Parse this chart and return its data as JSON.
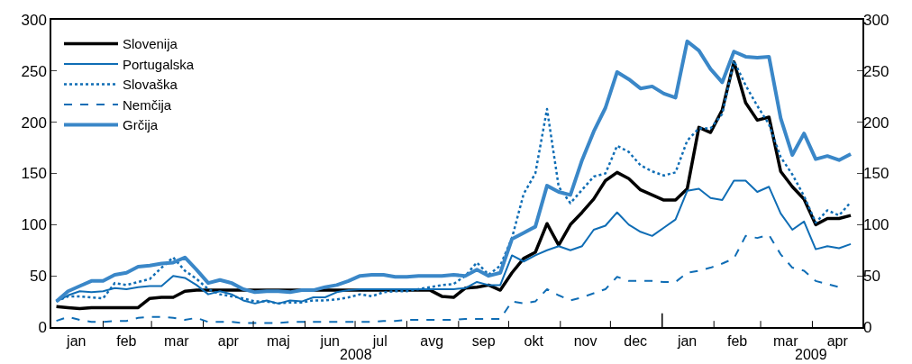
{
  "chart_data": {
    "type": "line",
    "x": [
      "2008-01-04",
      "2008-01-11",
      "2008-01-18",
      "2008-01-25",
      "2008-02-01",
      "2008-02-08",
      "2008-02-15",
      "2008-02-22",
      "2008-02-29",
      "2008-03-07",
      "2008-03-14",
      "2008-03-21",
      "2008-03-28",
      "2008-04-04",
      "2008-04-11",
      "2008-04-18",
      "2008-04-25",
      "2008-05-02",
      "2008-05-09",
      "2008-05-16",
      "2008-05-23",
      "2008-05-30",
      "2008-06-06",
      "2008-06-13",
      "2008-06-20",
      "2008-06-27",
      "2008-07-04",
      "2008-07-11",
      "2008-07-18",
      "2008-07-25",
      "2008-08-01",
      "2008-08-08",
      "2008-08-15",
      "2008-08-22",
      "2008-08-29",
      "2008-09-05",
      "2008-09-12",
      "2008-09-19",
      "2008-09-26",
      "2008-10-03",
      "2008-10-10",
      "2008-10-17",
      "2008-10-24",
      "2008-10-31",
      "2008-11-07",
      "2008-11-14",
      "2008-11-21",
      "2008-11-28",
      "2008-12-05",
      "2008-12-12",
      "2008-12-19",
      "2008-12-26",
      "2009-01-02",
      "2009-01-09",
      "2009-01-16",
      "2009-01-23",
      "2009-01-30",
      "2009-02-06",
      "2009-02-13",
      "2009-02-20",
      "2009-02-27",
      "2009-03-06",
      "2009-03-13",
      "2009-03-20",
      "2009-03-27",
      "2009-04-03",
      "2009-04-10",
      "2009-04-17",
      "2009-04-24"
    ],
    "series": [
      {
        "name": "Slovenija",
        "color": "#000000",
        "line_style": "solid",
        "values": [
          20,
          19,
          18,
          19,
          19,
          19,
          19,
          19,
          28,
          29,
          29,
          35,
          36,
          36,
          36,
          36,
          36,
          36,
          36,
          36,
          36,
          36,
          36,
          36,
          36,
          36,
          36,
          36,
          36,
          36,
          36,
          36,
          36,
          30,
          29,
          38,
          39,
          41,
          36,
          53,
          67,
          73,
          101,
          80,
          100,
          112,
          125,
          143,
          151,
          145,
          134,
          129,
          124,
          124,
          135,
          195,
          190,
          212,
          259,
          219,
          202,
          205,
          152,
          137,
          125,
          100,
          106,
          106,
          109
        ]
      },
      {
        "name": "Portugalska",
        "color": "#0f6db5",
        "line_style": "solid",
        "values": [
          25,
          31,
          35,
          34,
          35,
          38,
          37,
          39,
          40,
          40,
          50,
          48,
          41,
          32,
          35,
          32,
          26,
          23,
          26,
          23,
          26,
          25,
          29,
          29,
          34,
          36,
          37,
          37,
          37,
          37,
          37,
          37,
          37,
          37,
          37,
          38,
          44,
          41,
          41,
          70,
          64,
          70,
          75,
          79,
          75,
          79,
          95,
          99,
          112,
          100,
          93,
          89,
          97,
          105,
          133,
          135,
          126,
          124,
          143,
          143,
          132,
          137,
          111,
          95,
          103,
          76,
          79,
          77,
          81
        ]
      },
      {
        "name": "Slovaška",
        "color": "#0f6db5",
        "line_style": "dotted",
        "values": [
          25,
          30,
          30,
          29,
          28,
          43,
          41,
          44,
          47,
          58,
          68,
          55,
          47,
          37,
          32,
          30,
          28,
          25,
          25,
          23,
          24,
          24,
          26,
          26,
          27,
          29,
          32,
          30,
          34,
          35,
          35,
          37,
          39,
          41,
          42,
          50,
          63,
          51,
          60,
          87,
          130,
          150,
          213,
          137,
          121,
          134,
          147,
          150,
          177,
          171,
          158,
          152,
          148,
          151,
          182,
          194,
          194,
          208,
          260,
          236,
          216,
          198,
          166,
          149,
          128,
          102,
          114,
          109,
          122
        ]
      },
      {
        "name": "Nemčija",
        "color": "#0f6db5",
        "line_style": "dashed",
        "values": [
          6,
          10,
          7,
          5,
          5,
          6,
          6,
          9,
          10,
          10,
          9,
          7,
          9,
          5,
          5,
          5,
          4,
          4,
          4,
          4,
          5,
          5,
          5,
          5,
          5,
          5,
          5,
          5,
          6,
          6,
          7,
          7,
          7,
          7,
          7,
          8,
          8,
          8,
          8,
          25,
          23,
          25,
          37,
          31,
          26,
          29,
          33,
          37,
          49,
          45,
          45,
          45,
          44,
          44,
          53,
          55,
          58,
          62,
          67,
          89,
          87,
          90,
          71,
          58,
          55,
          45,
          42,
          39,
          null
        ]
      },
      {
        "name": "Grčija",
        "color": "#3a87c8",
        "line_style": "solid",
        "values": [
          25,
          35,
          40,
          45,
          45,
          51,
          53,
          59,
          60,
          62,
          63,
          68,
          56,
          43,
          46,
          43,
          37,
          34,
          35,
          35,
          34,
          36,
          36,
          39,
          41,
          45,
          50,
          51,
          51,
          49,
          49,
          50,
          50,
          50,
          51,
          50,
          56,
          50,
          53,
          86,
          92,
          98,
          138,
          132,
          129,
          163,
          191,
          214,
          249,
          242,
          233,
          235,
          228,
          224,
          279,
          270,
          252,
          239,
          269,
          264,
          263,
          264,
          204,
          168,
          189,
          164,
          167,
          163,
          169
        ]
      }
    ],
    "xlim": [
      "2008-01-01",
      "2009-05-01"
    ],
    "xticks": [
      {
        "value": "2008-01-16",
        "label": "jan"
      },
      {
        "value": "2008-02-15",
        "label": "feb"
      },
      {
        "value": "2008-03-16",
        "label": "mar"
      },
      {
        "value": "2008-04-16",
        "label": "apr"
      },
      {
        "value": "2008-05-16",
        "label": "maj"
      },
      {
        "value": "2008-06-16",
        "label": "jun"
      },
      {
        "value": "2008-07-16",
        "label": "jul"
      },
      {
        "value": "2008-08-16",
        "label": "avg"
      },
      {
        "value": "2008-09-16",
        "label": "sep"
      },
      {
        "value": "2008-10-16",
        "label": "okt"
      },
      {
        "value": "2008-11-16",
        "label": "nov"
      },
      {
        "value": "2008-12-16",
        "label": "dec"
      },
      {
        "value": "2009-01-16",
        "label": "jan"
      },
      {
        "value": "2009-02-15",
        "label": "feb"
      },
      {
        "value": "2009-03-16",
        "label": "mar"
      },
      {
        "value": "2009-04-16",
        "label": "apr"
      },
      {
        "value": "2008-02-01",
        "label": null
      },
      {
        "value": "2008-03-01",
        "label": null
      },
      {
        "value": "2008-04-01",
        "label": null
      },
      {
        "value": "2008-05-01",
        "label": null
      },
      {
        "value": "2008-06-01",
        "label": null
      },
      {
        "value": "2008-07-01",
        "label": null
      },
      {
        "value": "2008-08-01",
        "label": null
      },
      {
        "value": "2008-09-01",
        "label": null
      },
      {
        "value": "2008-10-01",
        "label": null
      },
      {
        "value": "2008-11-01",
        "label": null
      },
      {
        "value": "2008-12-01",
        "label": null
      },
      {
        "value": "2009-01-01",
        "label": null
      },
      {
        "value": "2009-02-01",
        "label": null
      },
      {
        "value": "2009-03-01",
        "label": null
      },
      {
        "value": "2009-04-01",
        "label": null
      }
    ],
    "annotations": [
      "2008",
      "2009"
    ],
    "ylim": [
      0,
      300
    ],
    "yticks": [
      0,
      50,
      100,
      150,
      200,
      250,
      300
    ],
    "y2lim": [
      0,
      300
    ],
    "y2ticks": [
      0,
      50,
      100,
      150,
      200,
      250,
      300
    ],
    "grid": false,
    "legend": "top left",
    "marker": "none"
  }
}
